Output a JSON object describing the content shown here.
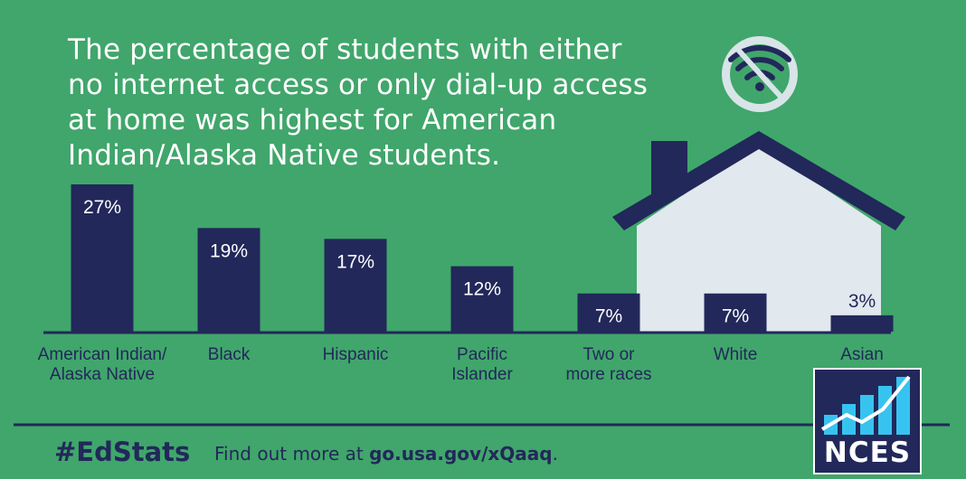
{
  "headline": "The percentage of students with either no internet access or only dial-up access at home was highest for American Indian/Alaska Native students.",
  "footer": {
    "hashtag": "#EdStats",
    "find_more": "Find out more at",
    "link": "go.usa.gov/xQaaq",
    "period": "."
  },
  "logo": {
    "text": "NCES"
  },
  "icons": {
    "no_wifi": "no-wifi-icon",
    "house": "house-illustration"
  },
  "colors": {
    "background": "#40a66b",
    "bar": "#22285a",
    "house_wall": "#e1e8ee",
    "house_roof": "#22285a",
    "text": "#ffffff",
    "logo_bars": "#37c3f0"
  },
  "chart_data": {
    "type": "bar",
    "title": "",
    "xlabel": "",
    "ylabel": "",
    "ylim": [
      0,
      27
    ],
    "categories": [
      [
        "American Indian/",
        "Alaska Native"
      ],
      [
        "Black"
      ],
      [
        "Hispanic"
      ],
      [
        "Pacific",
        "Islander"
      ],
      [
        "Two or",
        "more races"
      ],
      [
        "White"
      ],
      [
        "Asian"
      ]
    ],
    "values": [
      27,
      19,
      17,
      12,
      7,
      7,
      3
    ],
    "value_labels": [
      "27%",
      "19%",
      "17%",
      "12%",
      "7%",
      "7%",
      "3%"
    ],
    "grid": false,
    "legend": "none"
  }
}
